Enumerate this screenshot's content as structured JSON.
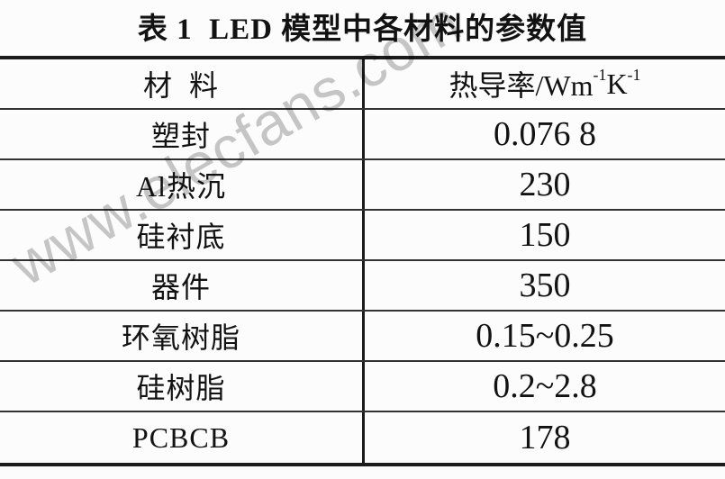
{
  "page": {
    "title": "表 1  LED 模型中各材料的参数值",
    "watermark": "www.elecfans.com"
  },
  "table": {
    "header": {
      "material": "材  料",
      "conductivity_base": "热导率/Wm",
      "conductivity_sup1": "-1",
      "conductivity_k": "K",
      "conductivity_sup2": "-1"
    },
    "rows": [
      {
        "material": "塑封",
        "value": "0.076 8"
      },
      {
        "material": "Al热沉",
        "value": "230"
      },
      {
        "material": "硅衬底",
        "value": "150"
      },
      {
        "material": "器件",
        "value": "350"
      },
      {
        "material": "环氧树脂",
        "value": "0.15~0.25"
      },
      {
        "material": "硅树脂",
        "value": "0.2~2.8"
      },
      {
        "material": "PCBCB",
        "value": "178"
      }
    ]
  },
  "colors": {
    "border": "#1c1c1c",
    "row_line": "#323232",
    "text": "#121212",
    "watermark": "#9b9b9b",
    "background": "#fcfcfc"
  }
}
